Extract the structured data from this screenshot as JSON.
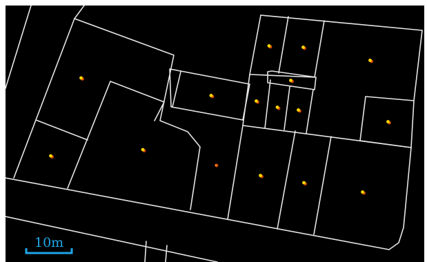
{
  "map": {
    "background": "#000000",
    "parcel_line_color": "#e6e6e6",
    "parcel_count": 25,
    "marker_colors": {
      "primary": "#ffd800",
      "secondary": "#d24a00"
    },
    "marker_count": 18
  },
  "scale_bar": {
    "label": "10m",
    "color": "#1ea7e8"
  }
}
